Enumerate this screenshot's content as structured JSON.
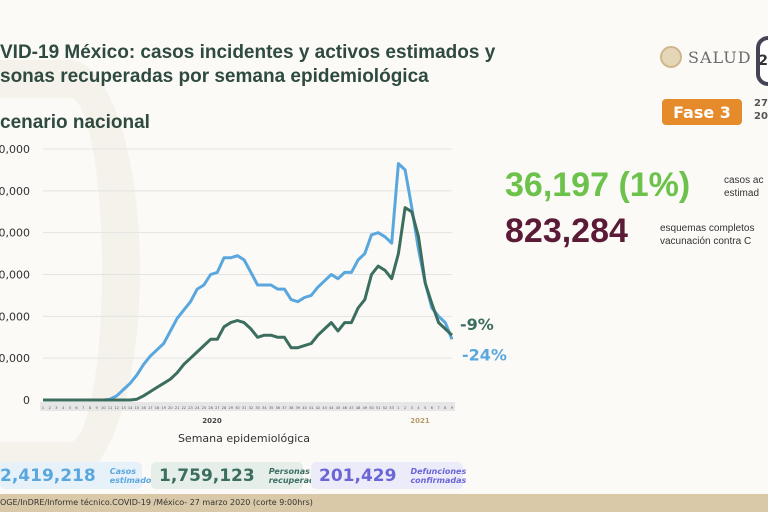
{
  "header": {
    "title_line1": "VID-19 México: casos incidentes y activos estimados y",
    "title_line2": "sonas recuperadas por semana epidemiológica",
    "subtitle": "cenario nacional"
  },
  "logo": {
    "salud": "SALUD",
    "emblem": "2"
  },
  "phase": {
    "label": "Fase 3",
    "color": "#e58b2c"
  },
  "date": {
    "line1": "27",
    "line2": "20"
  },
  "highlights": {
    "active_value": "36,197 (1%)",
    "active_label1": "casos ac",
    "active_label2": "estimad",
    "vaccine_value": "823,284",
    "vaccine_label1": "esquemas completos",
    "vaccine_label2": "vacunación contra C"
  },
  "stats": [
    {
      "value": "2,419,218",
      "label1": "Casos",
      "label2": "estimados"
    },
    {
      "value": "1,759,123",
      "label1": "Personas",
      "label2": "recuperadas"
    },
    {
      "value": "201,429",
      "label1": "Defunciones",
      "label2": "confirmadas"
    }
  ],
  "footer": {
    "source": "OGE/InDRE/Informe técnico.COVID-19 /México- 27 marzo 2020 (corte 9:00hrs)"
  },
  "chart_data": {
    "type": "line",
    "xlabel": "Semana epidemiológica",
    "year_labels": [
      "2020",
      "2021"
    ],
    "ytick_labels": [
      "0",
      "0,000",
      "0,000",
      "0,000",
      "0,000",
      "0,000",
      "0,000"
    ],
    "yticks": [
      0,
      20000,
      40000,
      60000,
      80000,
      100000,
      120000
    ],
    "ylim": [
      0,
      120000
    ],
    "grid": true,
    "x": [
      1,
      2,
      3,
      4,
      5,
      6,
      7,
      8,
      9,
      10,
      11,
      12,
      13,
      14,
      15,
      16,
      17,
      18,
      19,
      20,
      21,
      22,
      23,
      24,
      25,
      26,
      27,
      28,
      29,
      30,
      31,
      32,
      33,
      34,
      35,
      36,
      37,
      38,
      39,
      40,
      41,
      42,
      43,
      44,
      45,
      46,
      47,
      48,
      49,
      50,
      51,
      52,
      53,
      1,
      2,
      3,
      4,
      5,
      6,
      7,
      8,
      9
    ],
    "series": [
      {
        "name": "Casos incidentes estimados",
        "color": "#5aa7de",
        "end_label": "-24%",
        "values": [
          0,
          0,
          0,
          0,
          0,
          0,
          0,
          0,
          0,
          0,
          400,
          2000,
          5000,
          8000,
          12000,
          17000,
          21000,
          24000,
          27000,
          33000,
          39000,
          43000,
          47000,
          53000,
          55000,
          60000,
          61000,
          68000,
          68000,
          69000,
          67000,
          61000,
          55000,
          55000,
          55000,
          53000,
          53000,
          48000,
          47000,
          49000,
          50000,
          54000,
          57000,
          60000,
          58000,
          61000,
          61000,
          67000,
          70000,
          79000,
          80000,
          78000,
          75000,
          113000,
          110000,
          92000,
          72000,
          56000,
          44000,
          40000,
          37000,
          29000
        ]
      },
      {
        "name": "Casos activos estimados",
        "color": "#3c6e60",
        "end_label": "-9%",
        "values": [
          0,
          0,
          0,
          0,
          0,
          0,
          0,
          0,
          0,
          0,
          0,
          0,
          0,
          0,
          400,
          2000,
          4000,
          6000,
          8000,
          10000,
          13000,
          17000,
          20000,
          23000,
          26000,
          29000,
          29000,
          35000,
          37000,
          38000,
          37000,
          34000,
          30000,
          31000,
          31000,
          30000,
          30000,
          25000,
          25000,
          26000,
          27000,
          31000,
          34000,
          37000,
          33000,
          37000,
          37000,
          44000,
          48000,
          60000,
          64000,
          62000,
          58000,
          70000,
          92000,
          90000,
          78000,
          56000,
          46000,
          37000,
          34000,
          31000
        ]
      }
    ]
  }
}
